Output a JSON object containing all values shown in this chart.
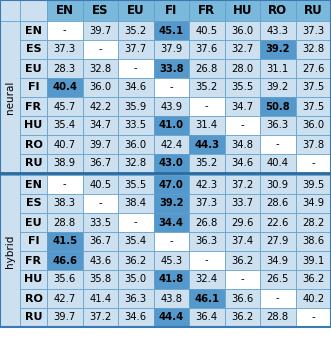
{
  "col_headers": [
    "EN",
    "ES",
    "EU",
    "FI",
    "FR",
    "HU",
    "RO",
    "RU"
  ],
  "row_headers": [
    "EN",
    "ES",
    "EU",
    "FI",
    "FR",
    "HU",
    "RO",
    "RU"
  ],
  "neural_data": [
    [
      "-",
      "39.7",
      "35.2",
      "45.1",
      "40.5",
      "36.0",
      "43.3",
      "37.3"
    ],
    [
      "37.3",
      "-",
      "37.7",
      "37.9",
      "37.6",
      "32.7",
      "39.2",
      "32.8"
    ],
    [
      "28.3",
      "32.8",
      "-",
      "33.8",
      "26.8",
      "28.0",
      "31.1",
      "27.6"
    ],
    [
      "40.4",
      "36.0",
      "34.6",
      "-",
      "35.2",
      "35.5",
      "39.2",
      "37.5"
    ],
    [
      "45.7",
      "42.2",
      "35.9",
      "43.9",
      "-",
      "34.7",
      "50.8",
      "37.5"
    ],
    [
      "35.4",
      "34.7",
      "33.5",
      "41.0",
      "31.4",
      "-",
      "36.3",
      "36.0"
    ],
    [
      "40.7",
      "39.7",
      "36.0",
      "42.4",
      "44.3",
      "34.8",
      "-",
      "37.8"
    ],
    [
      "38.9",
      "36.7",
      "32.8",
      "43.0",
      "35.2",
      "34.6",
      "40.4",
      "-"
    ]
  ],
  "hybrid_data": [
    [
      "-",
      "40.5",
      "35.5",
      "47.0",
      "42.3",
      "37.2",
      "30.9",
      "39.5"
    ],
    [
      "38.3",
      "-",
      "38.4",
      "39.2",
      "37.3",
      "33.7",
      "28.6",
      "34.9"
    ],
    [
      "28.8",
      "33.5",
      "-",
      "34.4",
      "26.8",
      "29.6",
      "22.6",
      "28.2"
    ],
    [
      "41.5",
      "36.7",
      "35.4",
      "-",
      "36.3",
      "37.4",
      "27.9",
      "38.6"
    ],
    [
      "46.6",
      "43.6",
      "36.2",
      "45.3",
      "-",
      "36.2",
      "34.9",
      "39.1"
    ],
    [
      "35.6",
      "35.8",
      "35.0",
      "41.8",
      "32.4",
      "-",
      "26.5",
      "36.2"
    ],
    [
      "42.7",
      "41.4",
      "36.3",
      "43.8",
      "46.1",
      "36.6",
      "-",
      "40.2"
    ],
    [
      "39.7",
      "37.2",
      "34.6",
      "44.4",
      "36.4",
      "36.2",
      "28.8",
      "-"
    ]
  ],
  "color_light_blue": "#cce0f0",
  "color_medium_blue": "#7ab8dc",
  "color_header_blue": "#7ab8dc",
  "color_bold_blue": "#5599cc",
  "color_white": "#ffffff",
  "color_border": "#5a9dc8",
  "color_section_bg": "#b8d8ed",
  "figsize": [
    3.31,
    3.39
  ],
  "dpi": 100
}
